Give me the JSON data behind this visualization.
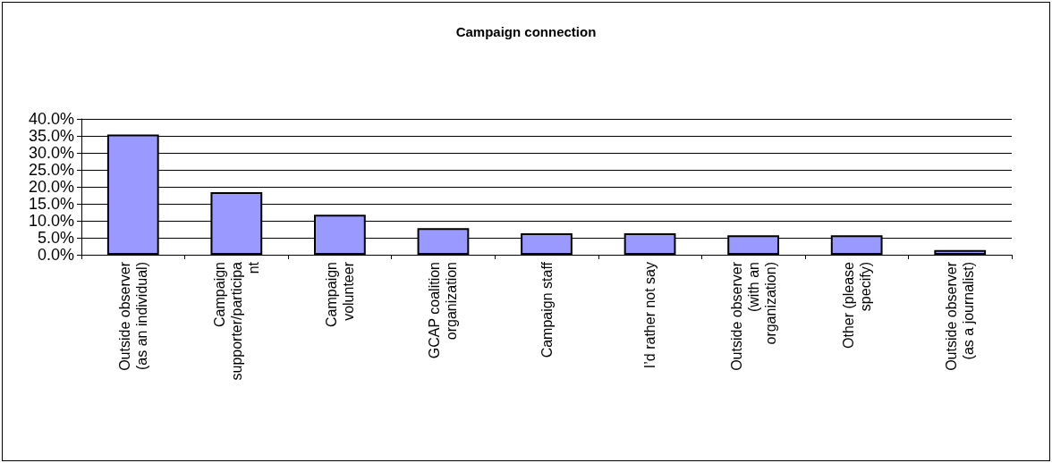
{
  "chart_data": {
    "type": "bar",
    "title": "Campaign connection",
    "categories": [
      "Outside observer\n(as an individual)",
      "Campaign\nsupporter/participa\nnt",
      "Campaign\nvolunteer",
      "GCAP coalition\norganization",
      "Campaign staff",
      "I’d rather not say",
      "Outside observer\n(with an\norganization)",
      "Other (please\nspecify)",
      "Outside observer\n(as a journalist)"
    ],
    "values": [
      35.4,
      18.4,
      11.8,
      7.8,
      6.3,
      6.3,
      5.7,
      5.7,
      1.4
    ],
    "color": "#9999ff",
    "ylim": [
      0,
      40
    ],
    "yticks": [
      {
        "value": 0,
        "label": "0.0%"
      },
      {
        "value": 5,
        "label": "5.0%"
      },
      {
        "value": 10,
        "label": "10.0%"
      },
      {
        "value": 15,
        "label": "15.0%"
      },
      {
        "value": 20,
        "label": "20.0%"
      },
      {
        "value": 25,
        "label": "25.0%"
      },
      {
        "value": 30,
        "label": "30.0%"
      },
      {
        "value": 35,
        "label": "35.0%"
      },
      {
        "value": 40,
        "label": "40.0%"
      }
    ],
    "grid": "y"
  }
}
